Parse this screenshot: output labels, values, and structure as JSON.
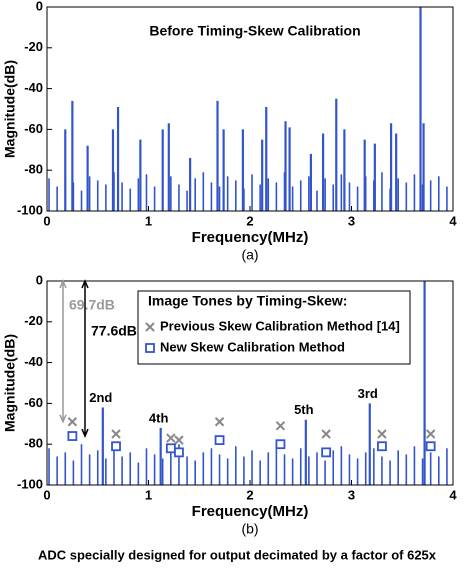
{
  "chart_data": [
    {
      "type": "spectrum",
      "title": "Before Timing-Skew Calibration",
      "x_label": "Frequency(MHz)",
      "y_label": "Magnitude(dB)",
      "caption": "(a)",
      "color": "#3355cc",
      "xlim": [
        0,
        4
      ],
      "ylim": [
        -100,
        0
      ],
      "xticks": [
        0,
        1,
        2,
        3,
        4
      ],
      "yticks": [
        -100,
        -80,
        -60,
        -40,
        -20,
        0
      ],
      "x": [
        0.18,
        0.25,
        0.4,
        0.65,
        0.7,
        0.92,
        1.14,
        1.2,
        1.41,
        1.68,
        1.74,
        1.93,
        2.12,
        2.16,
        2.35,
        2.39,
        2.6,
        2.72,
        2.85,
        2.93,
        3.13,
        3.23,
        3.39,
        3.44,
        3.68,
        3.71,
        0.02,
        0.1,
        0.18,
        0.26,
        0.34,
        0.42,
        0.5,
        0.58,
        0.66,
        0.74,
        0.82,
        0.9,
        0.98,
        1.06,
        1.14,
        1.22,
        1.3,
        1.38,
        1.46,
        1.54,
        1.62,
        1.7,
        1.78,
        1.86,
        1.94,
        2.02,
        2.1,
        2.18,
        2.26,
        2.34,
        2.42,
        2.5,
        2.58,
        2.66,
        2.74,
        2.82,
        2.9,
        2.98,
        3.06,
        3.14,
        3.22,
        3.3,
        3.38,
        3.46,
        3.54,
        3.62,
        3.7,
        3.78,
        3.86,
        3.94
      ],
      "values": [
        -60,
        -46,
        -68,
        -60,
        -49,
        -65,
        -60,
        -57,
        -74,
        -46,
        -60,
        -60,
        -65,
        -49,
        -56,
        -59,
        -72,
        -62,
        -45,
        -60,
        -65,
        -67,
        -57,
        -62,
        0,
        -57,
        -84,
        -88,
        -82,
        -86,
        -90,
        -83,
        -85,
        -87,
        -81,
        -86,
        -89,
        -84,
        -82,
        -88,
        -85,
        -83,
        -87,
        -90,
        -84,
        -81,
        -86,
        -88,
        -83,
        -85,
        -89,
        -82,
        -87,
        -84,
        -86,
        -81,
        -88,
        -85,
        -83,
        -90,
        -84,
        -87,
        -82,
        -86,
        -88,
        -83,
        -85,
        -81,
        -89,
        -84,
        -86,
        -82,
        -87,
        -85,
        -83,
        -88
      ]
    },
    {
      "type": "spectrum",
      "x_label": "Frequency(MHz)",
      "y_label": "Magnitude(dB)",
      "caption": "(b)",
      "footer": "ADC specially designed for output decimated by a factor of 625x",
      "color": "#3355cc",
      "xlim": [
        0,
        4
      ],
      "ylim": [
        -100,
        0
      ],
      "xticks": [
        0,
        1,
        2,
        3,
        4
      ],
      "yticks": [
        -100,
        -80,
        -60,
        -40,
        -20,
        0
      ],
      "annotations": [
        "2nd",
        "4th",
        "5th",
        "3rd"
      ],
      "gap_labels": [
        "69.7dB",
        "77.6dB"
      ],
      "legend_title": "Image Tones by Timing-Skew:",
      "x": [
        0.55,
        1.12,
        2.55,
        3.18,
        3.72,
        0.02,
        0.1,
        0.18,
        0.26,
        0.34,
        0.42,
        0.5,
        0.58,
        0.66,
        0.74,
        0.82,
        0.9,
        0.98,
        1.06,
        1.14,
        1.22,
        1.3,
        1.38,
        1.46,
        1.54,
        1.62,
        1.7,
        1.78,
        1.86,
        1.94,
        2.02,
        2.1,
        2.18,
        2.26,
        2.34,
        2.42,
        2.5,
        2.58,
        2.66,
        2.74,
        2.82,
        2.9,
        2.98,
        3.06,
        3.14,
        3.22,
        3.3,
        3.38,
        3.46,
        3.54,
        3.62,
        3.7,
        3.78,
        3.86,
        3.94
      ],
      "values": [
        -62,
        -72,
        -68,
        -60,
        0,
        -82,
        -86,
        -84,
        -88,
        -80,
        -85,
        -83,
        -87,
        -81,
        -86,
        -84,
        -89,
        -82,
        -85,
        -87,
        -83,
        -80,
        -86,
        -88,
        -84,
        -82,
        -85,
        -87,
        -81,
        -86,
        -83,
        -88,
        -84,
        -80,
        -85,
        -87,
        -82,
        -86,
        -84,
        -88,
        -83,
        -81,
        -85,
        -87,
        -84,
        -82,
        -86,
        -88,
        -83,
        -85,
        -81,
        -87,
        -84,
        -86,
        -82
      ],
      "series": [
        {
          "name": "Previous Skew Calibration Method [14]",
          "color": "#888888",
          "marker": "x",
          "x": [
            0.25,
            0.68,
            1.22,
            1.3,
            1.7,
            2.3,
            2.75,
            3.3,
            3.78
          ],
          "values": [
            -69,
            -75,
            -77,
            -78,
            -69,
            -71,
            -75,
            -75,
            -75
          ]
        },
        {
          "name": "New Skew Calibration Method",
          "color": "#3355cc",
          "marker": "square",
          "x": [
            0.25,
            0.68,
            1.22,
            1.3,
            1.7,
            2.3,
            2.75,
            3.3,
            3.78
          ],
          "values": [
            -76,
            -81,
            -82,
            -84,
            -78,
            -80,
            -84,
            -81,
            -81
          ]
        }
      ]
    }
  ]
}
